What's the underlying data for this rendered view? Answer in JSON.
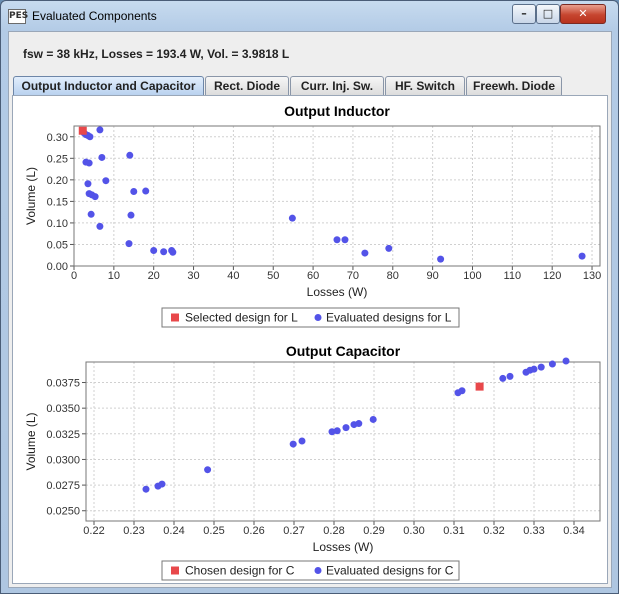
{
  "window": {
    "title": "Evaluated Components",
    "icon_label": "PES",
    "controls": [
      "minimize-icon",
      "maximize-icon",
      "close-icon"
    ]
  },
  "header": {
    "summary": "fsw = 38 kHz, Losses = 193.4 W, Vol. = 3.9818 L"
  },
  "tabs": [
    {
      "label": "Output Inductor and Capacitor",
      "active": true
    },
    {
      "label": "Rect. Diode",
      "active": false
    },
    {
      "label": "Curr. Inj. Sw.",
      "active": false
    },
    {
      "label": "HF. Switch",
      "active": false
    },
    {
      "label": "Freewh. Diode",
      "active": false
    }
  ],
  "colors": {
    "selected": "#e8484b",
    "evaluated": "#5353e8",
    "grid": "#d0d0d0"
  },
  "chart_data": [
    {
      "type": "scatter",
      "title": "Output Inductor",
      "xlabel": "Losses (W)",
      "ylabel": "Volume (L)",
      "xlim": [
        0,
        132
      ],
      "ylim": [
        0,
        0.325
      ],
      "xticks": [
        "0",
        "10",
        "20",
        "30",
        "40",
        "50",
        "60",
        "70",
        "80",
        "90",
        "100",
        "110",
        "120",
        "130"
      ],
      "yticks": [
        "0.00",
        "0.05",
        "0.10",
        "0.15",
        "0.20",
        "0.25",
        "0.30"
      ],
      "grid": true,
      "legend": "bottom",
      "series": [
        {
          "name": "Selected design for L",
          "marker": "square",
          "color": "#e8484b",
          "points": [
            [
              2.2,
              0.314
            ]
          ]
        },
        {
          "name": "Evaluated designs for L",
          "marker": "circle",
          "color": "#5353e8",
          "points": [
            [
              2.5,
              0.309
            ],
            [
              3.0,
              0.305
            ],
            [
              3.5,
              0.303
            ],
            [
              4.0,
              0.3
            ],
            [
              6.5,
              0.316
            ],
            [
              3.0,
              0.241
            ],
            [
              3.8,
              0.239
            ],
            [
              7.0,
              0.252
            ],
            [
              3.5,
              0.191
            ],
            [
              8.0,
              0.198
            ],
            [
              3.8,
              0.168
            ],
            [
              4.5,
              0.165
            ],
            [
              5.3,
              0.161
            ],
            [
              15.0,
              0.173
            ],
            [
              18.0,
              0.174
            ],
            [
              4.3,
              0.12
            ],
            [
              6.5,
              0.092
            ],
            [
              14.0,
              0.257
            ],
            [
              14.3,
              0.118
            ],
            [
              13.8,
              0.052
            ],
            [
              20.0,
              0.036
            ],
            [
              22.5,
              0.033
            ],
            [
              24.5,
              0.036
            ],
            [
              24.8,
              0.032
            ],
            [
              54.8,
              0.111
            ],
            [
              66.0,
              0.061
            ],
            [
              68.0,
              0.061
            ],
            [
              73.0,
              0.03
            ],
            [
              79.0,
              0.041
            ],
            [
              92.0,
              0.016
            ],
            [
              127.5,
              0.023
            ]
          ]
        }
      ]
    },
    {
      "type": "scatter",
      "title": "Output Capacitor",
      "xlabel": "Losses (W)",
      "ylabel": "Volume (L)",
      "xlim": [
        0.218,
        0.3465
      ],
      "ylim": [
        0.024,
        0.0395
      ],
      "xticks": [
        "0.22",
        "0.23",
        "0.24",
        "0.25",
        "0.26",
        "0.27",
        "0.28",
        "0.29",
        "0.30",
        "0.31",
        "0.32",
        "0.33",
        "0.34"
      ],
      "yticks": [
        "0.0250",
        "0.0275",
        "0.0300",
        "0.0325",
        "0.0350",
        "0.0375"
      ],
      "grid": true,
      "legend": "bottom",
      "series": [
        {
          "name": "Chosen design for C",
          "marker": "square",
          "color": "#e8484b",
          "points": [
            [
              0.3164,
              0.0371
            ]
          ]
        },
        {
          "name": "Evaluated designs for C",
          "marker": "circle",
          "color": "#5353e8",
          "points": [
            [
              0.233,
              0.0271
            ],
            [
              0.236,
              0.0274
            ],
            [
              0.237,
              0.0276
            ],
            [
              0.2484,
              0.029
            ],
            [
              0.2698,
              0.0315
            ],
            [
              0.272,
              0.0318
            ],
            [
              0.2795,
              0.0327
            ],
            [
              0.2808,
              0.0328
            ],
            [
              0.283,
              0.0331
            ],
            [
              0.285,
              0.0334
            ],
            [
              0.2862,
              0.0335
            ],
            [
              0.2898,
              0.0339
            ],
            [
              0.311,
              0.0365
            ],
            [
              0.312,
              0.0367
            ],
            [
              0.3222,
              0.0379
            ],
            [
              0.324,
              0.0381
            ],
            [
              0.328,
              0.0385
            ],
            [
              0.329,
              0.0387
            ],
            [
              0.33,
              0.0388
            ],
            [
              0.3318,
              0.039
            ],
            [
              0.3346,
              0.0393
            ],
            [
              0.338,
              0.0396
            ]
          ]
        }
      ]
    }
  ]
}
